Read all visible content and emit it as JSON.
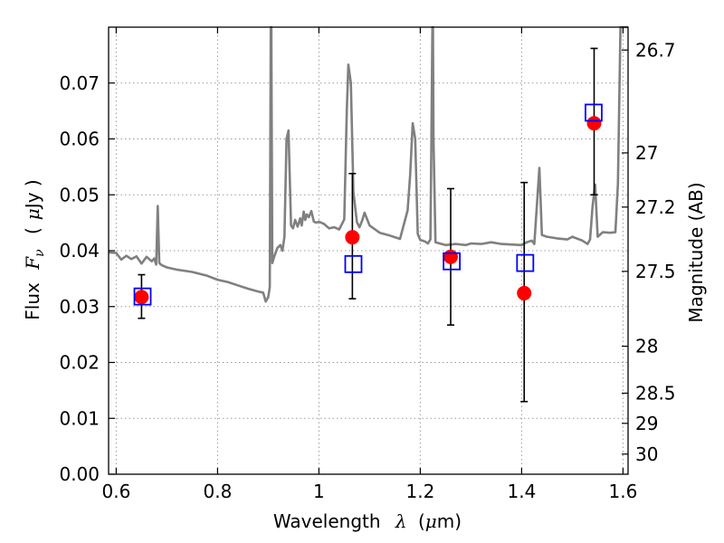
{
  "chart_data": {
    "type": "scatter",
    "xlabel": "Wavelength",
    "xlabel_math": "λ",
    "xlabel_unit_open": "(",
    "xlabel_unit_mu": "μ",
    "xlabel_unit_rest": "m)",
    "ylabel": "Flux",
    "ylabel_math": "F",
    "ylabel_math_sub": "ν",
    "ylabel_unit_open": "(",
    "ylabel_unit_mu": "μ",
    "ylabel_unit_rest": "Jy )",
    "y2label": "Magnitude (AB)",
    "xlim": [
      0.585,
      1.61
    ],
    "ylim": [
      0.0,
      0.08
    ],
    "grid": true,
    "x_ticks": [
      0.6,
      0.8,
      1.0,
      1.2,
      1.4,
      1.6
    ],
    "x_tick_labels": [
      "0.6",
      "0.8",
      "1",
      "1.2",
      "1.4",
      "1.6"
    ],
    "y_ticks": [
      0.0,
      0.01,
      0.02,
      0.03,
      0.04,
      0.05,
      0.06,
      0.07
    ],
    "y_tick_labels": [
      "0.00",
      "0.01",
      "0.02",
      "0.03",
      "0.04",
      "0.05",
      "0.06",
      "0.07"
    ],
    "y2_ticks": [
      {
        "label": "26.7",
        "flux": 0.0759
      },
      {
        "label": "27",
        "flux": 0.0575
      },
      {
        "label": "27.2",
        "flux": 0.0478
      },
      {
        "label": "27.5",
        "flux": 0.0363
      },
      {
        "label": "28",
        "flux": 0.0229
      },
      {
        "label": "28.5",
        "flux": 0.0145
      },
      {
        "label": "29",
        "flux": 0.0091
      },
      {
        "label": "30",
        "flux": 0.0036
      }
    ],
    "colors": {
      "model": "#808080",
      "observed": "#ff0000",
      "model_photometry": "#0000ff",
      "errorbar": "#000000",
      "grid": "#9a9a9a"
    },
    "series": [
      {
        "kind": "model_spectrum",
        "x": [
          0.585,
          0.6,
          0.61,
          0.62,
          0.63,
          0.64,
          0.65,
          0.66,
          0.67,
          0.675,
          0.679,
          0.682,
          0.685,
          0.69,
          0.7,
          0.72,
          0.75,
          0.78,
          0.8,
          0.82,
          0.84,
          0.86,
          0.88,
          0.89,
          0.895,
          0.9,
          0.903,
          0.905,
          0.906,
          0.907,
          0.908,
          0.912,
          0.918,
          0.924,
          0.928,
          0.932,
          0.936,
          0.94,
          0.945,
          0.949,
          0.953,
          0.958,
          0.963,
          0.966,
          0.97,
          0.973,
          0.976,
          0.98,
          0.985,
          0.99,
          0.995,
          1.0,
          1.01,
          1.02,
          1.03,
          1.04,
          1.05,
          1.055,
          1.058,
          1.063,
          1.068,
          1.075,
          1.08,
          1.085,
          1.09,
          1.1,
          1.12,
          1.14,
          1.16,
          1.175,
          1.18,
          1.185,
          1.19,
          1.195,
          1.2,
          1.205,
          1.21,
          1.215,
          1.22,
          1.222,
          1.224,
          1.225,
          1.226,
          1.23,
          1.25,
          1.27,
          1.29,
          1.3,
          1.32,
          1.34,
          1.36,
          1.38,
          1.4,
          1.41,
          1.42,
          1.425,
          1.43,
          1.435,
          1.44,
          1.45,
          1.47,
          1.49,
          1.5,
          1.52,
          1.53,
          1.535,
          1.54,
          1.545,
          1.55,
          1.56,
          1.575,
          1.585,
          1.59,
          1.595,
          1.61
        ],
        "y": [
          0.0397,
          0.0396,
          0.0384,
          0.0391,
          0.0385,
          0.039,
          0.0377,
          0.0389,
          0.0381,
          0.0386,
          0.0375,
          0.048,
          0.0378,
          0.0374,
          0.037,
          0.0366,
          0.0362,
          0.0355,
          0.0348,
          0.0344,
          0.0338,
          0.0332,
          0.0327,
          0.0325,
          0.0309,
          0.0317,
          0.0335,
          0.08,
          0.08,
          0.06,
          0.0378,
          0.039,
          0.0405,
          0.041,
          0.04,
          0.0425,
          0.06,
          0.0615,
          0.0445,
          0.044,
          0.0455,
          0.0443,
          0.0458,
          0.0445,
          0.047,
          0.0455,
          0.0465,
          0.046,
          0.0471,
          0.0452,
          0.045,
          0.0452,
          0.0448,
          0.044,
          0.0442,
          0.0438,
          0.0456,
          0.065,
          0.0733,
          0.07,
          0.0505,
          0.0451,
          0.0442,
          0.0453,
          0.0468,
          0.0445,
          0.0432,
          0.0427,
          0.0421,
          0.0472,
          0.0535,
          0.0628,
          0.06,
          0.043,
          0.0419,
          0.0418,
          0.0416,
          0.0413,
          0.042,
          0.06,
          0.08,
          0.08,
          0.06,
          0.0415,
          0.041,
          0.0412,
          0.041,
          0.0413,
          0.0412,
          0.0415,
          0.0412,
          0.0411,
          0.041,
          0.0415,
          0.0418,
          0.0412,
          0.048,
          0.0548,
          0.0428,
          0.0425,
          0.0422,
          0.042,
          0.0425,
          0.0418,
          0.0412,
          0.042,
          0.048,
          0.0518,
          0.0425,
          0.0433,
          0.0432,
          0.0433,
          0.052,
          0.08,
          0.08
        ]
      },
      {
        "kind": "observed",
        "x": [
          0.65,
          1.066,
          1.26,
          1.405,
          1.543
        ],
        "y": [
          0.0317,
          0.0424,
          0.0389,
          0.0324,
          0.0628
        ],
        "yerr_low": [
          0.0038,
          0.011,
          0.0122,
          0.0194,
          0.0128
        ],
        "yerr_high": [
          0.004,
          0.0114,
          0.0122,
          0.0198,
          0.0134
        ]
      },
      {
        "kind": "model_photometry",
        "x": [
          0.652,
          1.068,
          1.262,
          1.407,
          1.542
        ],
        "y": [
          0.0318,
          0.0376,
          0.0381,
          0.0378,
          0.0647
        ]
      }
    ]
  }
}
